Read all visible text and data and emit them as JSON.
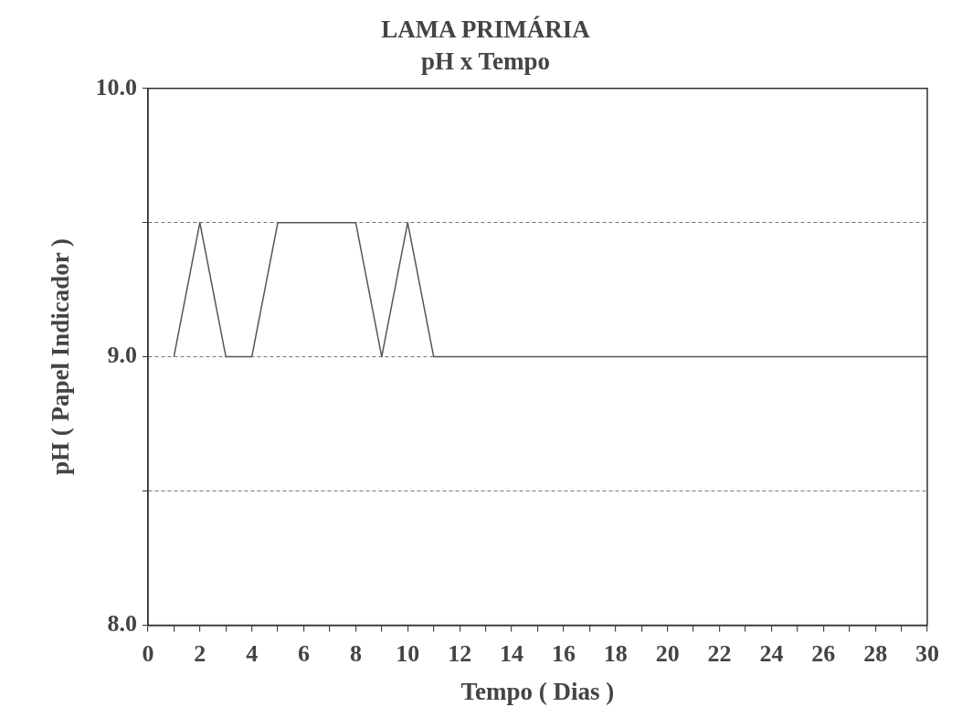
{
  "chart_data": {
    "type": "line",
    "title": "LAMA PRIMÁRIA",
    "subtitle": "pH x Tempo",
    "xlabel": "Tempo ( Dias )",
    "ylabel": "pH ( Papel Indicador )",
    "x": [
      1,
      2,
      3,
      4,
      5,
      6,
      7,
      8,
      9,
      10,
      11,
      12,
      13,
      14,
      15,
      16,
      17,
      18,
      19,
      20,
      21,
      22,
      23,
      24,
      25,
      26,
      27,
      28,
      29,
      30
    ],
    "series": [
      {
        "color": "#555555",
        "values": [
          9.0,
          9.5,
          9.0,
          9.0,
          9.5,
          9.5,
          9.5,
          9.5,
          9.0,
          9.5,
          9.0,
          9.0,
          9.0,
          9.0,
          9.0,
          9.0,
          9.0,
          9.0,
          9.0,
          9.0,
          9.0,
          9.0,
          9.0,
          9.0,
          9.0,
          9.0,
          9.0,
          9.0,
          9.0,
          9.0
        ]
      }
    ],
    "xlim": [
      0,
      30
    ],
    "xticks": [
      0,
      {
        "value": 1,
        "label": null
      },
      2,
      {
        "value": 3,
        "label": null
      },
      4,
      {
        "value": 5,
        "label": null
      },
      6,
      {
        "value": 7,
        "label": null
      },
      8,
      {
        "value": 9,
        "label": null
      },
      10,
      {
        "value": 11,
        "label": null
      },
      12,
      {
        "value": 13,
        "label": null
      },
      14,
      {
        "value": 15,
        "label": null
      },
      16,
      {
        "value": 17,
        "label": null
      },
      18,
      {
        "value": 19,
        "label": null
      },
      20,
      {
        "value": 21,
        "label": null
      },
      22,
      {
        "value": 23,
        "label": null
      },
      24,
      {
        "value": 25,
        "label": null
      },
      26,
      {
        "value": 27,
        "label": null
      },
      28,
      {
        "value": 29,
        "label": null
      },
      30
    ],
    "ylim": [
      8,
      10
    ],
    "yticks": [
      {
        "value": 8,
        "label": "8.0"
      },
      {
        "value": 8.5,
        "label": null
      },
      {
        "value": 9,
        "label": "9.0"
      },
      {
        "value": 9.5,
        "label": null
      },
      {
        "value": 10,
        "label": "10.0"
      }
    ],
    "grid": "y",
    "legend": false,
    "marker": "none",
    "line_style": "solid"
  }
}
